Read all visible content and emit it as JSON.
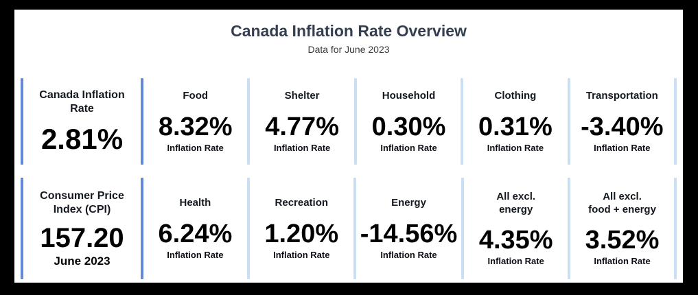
{
  "header": {
    "title": "Canada Inflation Rate Overview",
    "subtitle": "Data for June 2023"
  },
  "colors": {
    "accent_medium_blue": "#6289d8",
    "accent_light_blue": "#cbdff4",
    "title_navy": "#333f50",
    "value_black": "#000000",
    "frame_black": "#000000"
  },
  "rows": [
    {
      "summary": {
        "label": "Canada Inflation\nRate",
        "value": "2.81%"
      },
      "cards": [
        {
          "label": "Food",
          "value": "8.32%",
          "sublabel": "Inflation Rate"
        },
        {
          "label": "Shelter",
          "value": "4.77%",
          "sublabel": "Inflation Rate"
        },
        {
          "label": "Household",
          "value": "0.30%",
          "sublabel": "Inflation Rate"
        },
        {
          "label": "Clothing",
          "value": "0.31%",
          "sublabel": "Inflation Rate"
        },
        {
          "label": "Transportation",
          "value": "-3.40%",
          "sublabel": "Inflation Rate"
        }
      ]
    },
    {
      "summary": {
        "label": "Consumer Price\nIndex (CPI)",
        "value": "157.20",
        "sublabel": "June 2023"
      },
      "cards": [
        {
          "label": "Health",
          "value": "6.24%",
          "sublabel": "Inflation Rate"
        },
        {
          "label": "Recreation",
          "value": "1.20%",
          "sublabel": "Inflation Rate"
        },
        {
          "label": "Energy",
          "value": "-14.56%",
          "sublabel": "Inflation Rate"
        },
        {
          "label": "All excl.\nenergy",
          "value": "4.35%",
          "sublabel": "Inflation Rate"
        },
        {
          "label": "All excl.\nfood + energy",
          "value": "3.52%",
          "sublabel": "Inflation Rate"
        }
      ]
    }
  ],
  "chart_data": {
    "type": "table",
    "title": "Canada Inflation Rate Overview",
    "subtitle": "Data for June 2023",
    "summary_metrics": [
      {
        "label": "Canada Inflation Rate",
        "value_pct": 2.81
      },
      {
        "label": "Consumer Price Index (CPI)",
        "value": 157.2,
        "period": "June 2023"
      }
    ],
    "categories": [
      "Food",
      "Shelter",
      "Household",
      "Clothing",
      "Transportation",
      "Health",
      "Recreation",
      "Energy",
      "All excl. energy",
      "All excl. food + energy"
    ],
    "values_pct": [
      8.32,
      4.77,
      0.3,
      0.31,
      -3.4,
      6.24,
      1.2,
      -14.56,
      4.35,
      3.52
    ],
    "units": "percent (year-over-year inflation rate)"
  }
}
